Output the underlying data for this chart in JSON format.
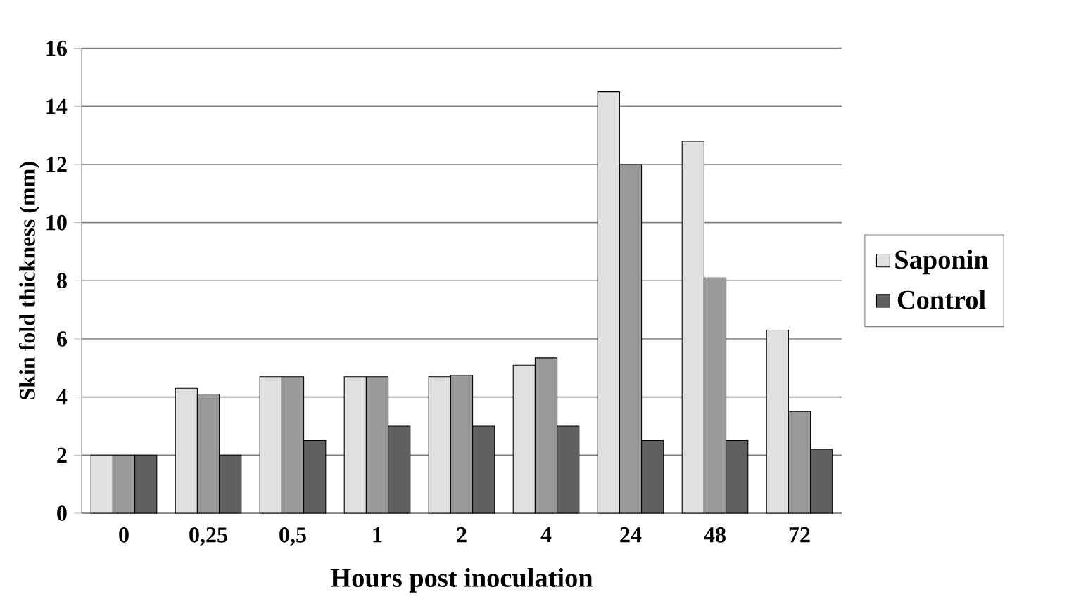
{
  "chart_data": {
    "type": "bar",
    "xlabel": "Hours post inoculation",
    "ylabel": "Skin fold thickness (mm)",
    "categories": [
      "0",
      "0,25",
      "0,5",
      "1",
      "2",
      "4",
      "24",
      "48",
      "72"
    ],
    "series": [
      {
        "name": "Saponin",
        "color": "#e0e0e0",
        "values": [
          2,
          4.3,
          4.7,
          4.7,
          4.7,
          5.1,
          14.5,
          12.8,
          6.3
        ]
      },
      {
        "color": "#9a9a9a",
        "values": [
          2,
          4.1,
          4.7,
          4.7,
          4.75,
          5.35,
          12,
          8.1,
          3.5
        ]
      },
      {
        "name": "Control",
        "color": "#606060",
        "values": [
          2,
          2,
          2.5,
          3,
          3,
          3,
          2.5,
          2.5,
          2.2
        ]
      }
    ],
    "ylim": [
      0,
      16
    ],
    "yticks": [
      0,
      2,
      4,
      6,
      8,
      10,
      12,
      14,
      16
    ],
    "grid": "y",
    "legend": "right"
  }
}
